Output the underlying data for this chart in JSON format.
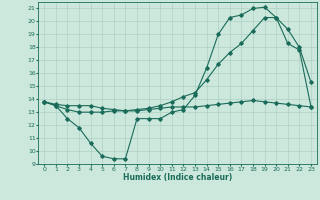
{
  "title": "",
  "xlabel": "Humidex (Indice chaleur)",
  "ylabel": "",
  "bg_color": "#cce8dc",
  "line_color": "#1a6b5a",
  "grid_color": "#aed0c4",
  "xlim": [
    -0.5,
    23.5
  ],
  "ylim": [
    9,
    21.5
  ],
  "yticks": [
    9,
    10,
    11,
    12,
    13,
    14,
    15,
    16,
    17,
    18,
    19,
    20,
    21
  ],
  "xticks": [
    0,
    1,
    2,
    3,
    4,
    5,
    6,
    7,
    8,
    9,
    10,
    11,
    12,
    13,
    14,
    15,
    16,
    17,
    18,
    19,
    20,
    21,
    22,
    23
  ],
  "line1_x": [
    0,
    1,
    2,
    3,
    4,
    5,
    6,
    7,
    8,
    9,
    10,
    11,
    12,
    13,
    14,
    15,
    16,
    17,
    18,
    19,
    20,
    21,
    22,
    23
  ],
  "line1_y": [
    13.8,
    13.5,
    12.5,
    11.8,
    10.6,
    9.6,
    9.4,
    9.4,
    12.5,
    12.5,
    12.5,
    13.0,
    13.2,
    14.3,
    16.4,
    19.0,
    20.3,
    20.5,
    21.0,
    21.1,
    20.3,
    19.4,
    18.0,
    15.3
  ],
  "line2_x": [
    0,
    1,
    2,
    3,
    4,
    5,
    6,
    7,
    8,
    9,
    10,
    11,
    12,
    13,
    14,
    15,
    16,
    17,
    18,
    19,
    20,
    21,
    22,
    23
  ],
  "line2_y": [
    13.8,
    13.6,
    13.5,
    13.5,
    13.5,
    13.3,
    13.2,
    13.1,
    13.1,
    13.2,
    13.3,
    13.4,
    13.4,
    13.4,
    13.5,
    13.6,
    13.7,
    13.8,
    13.9,
    13.8,
    13.7,
    13.6,
    13.5,
    13.4
  ],
  "line3_x": [
    0,
    1,
    2,
    3,
    4,
    5,
    6,
    7,
    8,
    9,
    10,
    11,
    12,
    13,
    14,
    15,
    16,
    17,
    18,
    19,
    20,
    21,
    22,
    23
  ],
  "line3_y": [
    13.8,
    13.5,
    13.2,
    13.0,
    13.0,
    13.0,
    13.1,
    13.1,
    13.2,
    13.3,
    13.5,
    13.8,
    14.2,
    14.5,
    15.5,
    16.7,
    17.6,
    18.3,
    19.3,
    20.3,
    20.3,
    18.3,
    17.8,
    13.4
  ]
}
